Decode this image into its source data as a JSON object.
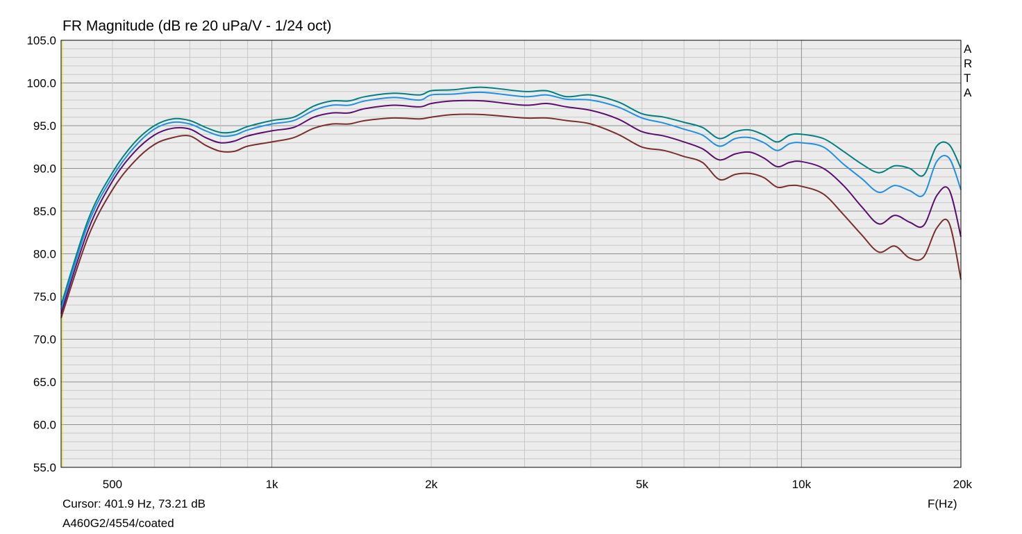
{
  "title": "FR Magnitude (dB re 20 uPa/V - 1/24 oct)",
  "cursor_readout": "Cursor: 401.9 Hz, 73.21 dB",
  "file_label": "A460G2/4554/coated",
  "x_unit_label": "F(Hz)",
  "brand_letters": [
    "A",
    "R",
    "T",
    "A"
  ],
  "colors": {
    "plot_background": "#ececec",
    "grid_minor": "#c8c8c8",
    "grid_major": "#8c8c8c",
    "left_marker": "#e6e600"
  },
  "chart_data": {
    "type": "line",
    "title": "FR Magnitude (dB re 20 uPa/V - 1/24 oct)",
    "xlabel": "F(Hz)",
    "ylabel": "",
    "xscale": "log",
    "xlim": [
      400,
      20000
    ],
    "ylim": [
      55,
      105
    ],
    "grid": true,
    "x_ticks": [
      {
        "value": 500,
        "label": "500"
      },
      {
        "value": 1000,
        "label": "1k"
      },
      {
        "value": 2000,
        "label": "2k"
      },
      {
        "value": 5000,
        "label": "5k"
      },
      {
        "value": 10000,
        "label": "10k"
      },
      {
        "value": 20000,
        "label": "20k"
      }
    ],
    "y_ticks": [
      "55.0",
      "60.0",
      "65.0",
      "70.0",
      "75.0",
      "80.0",
      "85.0",
      "90.0",
      "95.0",
      "100.0",
      "105.0"
    ],
    "x": [
      400,
      450,
      500,
      550,
      600,
      650,
      700,
      750,
      800,
      850,
      900,
      1000,
      1100,
      1200,
      1300,
      1400,
      1500,
      1700,
      1900,
      2000,
      2200,
      2500,
      3000,
      3300,
      3600,
      4000,
      4500,
      5000,
      5500,
      6000,
      6500,
      7000,
      7500,
      8000,
      8500,
      9000,
      9500,
      10000,
      11000,
      12000,
      13000,
      14000,
      15000,
      16000,
      17000,
      18000,
      19000,
      20000
    ],
    "series": [
      {
        "color": "#008080",
        "values": [
          74.0,
          84.0,
          89.5,
          93.0,
          95.0,
          95.8,
          95.6,
          94.8,
          94.2,
          94.3,
          94.9,
          95.6,
          96.0,
          97.3,
          97.9,
          97.9,
          98.4,
          98.8,
          98.6,
          99.1,
          99.2,
          99.5,
          99.0,
          99.1,
          98.4,
          98.6,
          97.8,
          96.4,
          96.0,
          95.4,
          94.8,
          93.5,
          94.3,
          94.5,
          93.9,
          93.1,
          93.9,
          94.0,
          93.5,
          92.0,
          90.5,
          89.5,
          90.3,
          90.0,
          89.2,
          92.6,
          92.8,
          90.0
        ]
      },
      {
        "color": "#1e8fe6",
        "values": [
          73.5,
          83.5,
          89.0,
          92.5,
          94.6,
          95.4,
          95.2,
          94.4,
          93.8,
          93.9,
          94.5,
          95.2,
          95.6,
          96.8,
          97.4,
          97.4,
          97.9,
          98.3,
          98.0,
          98.6,
          98.7,
          98.9,
          98.4,
          98.6,
          98.1,
          98.0,
          97.2,
          95.9,
          95.3,
          94.6,
          93.9,
          92.6,
          93.5,
          93.6,
          93.0,
          92.1,
          92.9,
          93.0,
          92.5,
          90.5,
          88.8,
          87.2,
          88.0,
          87.4,
          86.9,
          90.8,
          91.2,
          87.5
        ]
      },
      {
        "color": "#5a0f6e",
        "values": [
          73.0,
          82.8,
          88.5,
          91.9,
          93.9,
          94.7,
          94.6,
          93.6,
          93.0,
          93.2,
          93.8,
          94.4,
          94.8,
          96.0,
          96.5,
          96.5,
          97.0,
          97.4,
          97.2,
          97.6,
          97.9,
          97.9,
          97.4,
          97.6,
          97.2,
          96.8,
          95.8,
          94.3,
          93.8,
          93.1,
          92.3,
          91.0,
          91.7,
          91.9,
          91.2,
          90.2,
          90.7,
          90.8,
          90.0,
          88.0,
          85.5,
          83.5,
          84.5,
          83.7,
          83.3,
          86.8,
          87.5,
          82.0
        ]
      },
      {
        "color": "#7a2e2e",
        "values": [
          72.5,
          82.0,
          87.5,
          90.8,
          92.8,
          93.6,
          93.8,
          92.7,
          92.0,
          92.0,
          92.6,
          93.1,
          93.6,
          94.7,
          95.2,
          95.2,
          95.6,
          95.9,
          95.8,
          96.0,
          96.3,
          96.3,
          95.9,
          95.9,
          95.6,
          95.2,
          94.0,
          92.5,
          92.1,
          91.4,
          90.7,
          88.7,
          89.3,
          89.4,
          88.9,
          87.8,
          88.0,
          87.9,
          87.0,
          84.6,
          82.2,
          80.2,
          80.9,
          79.5,
          79.6,
          83.0,
          83.6,
          77.0
        ]
      }
    ]
  }
}
